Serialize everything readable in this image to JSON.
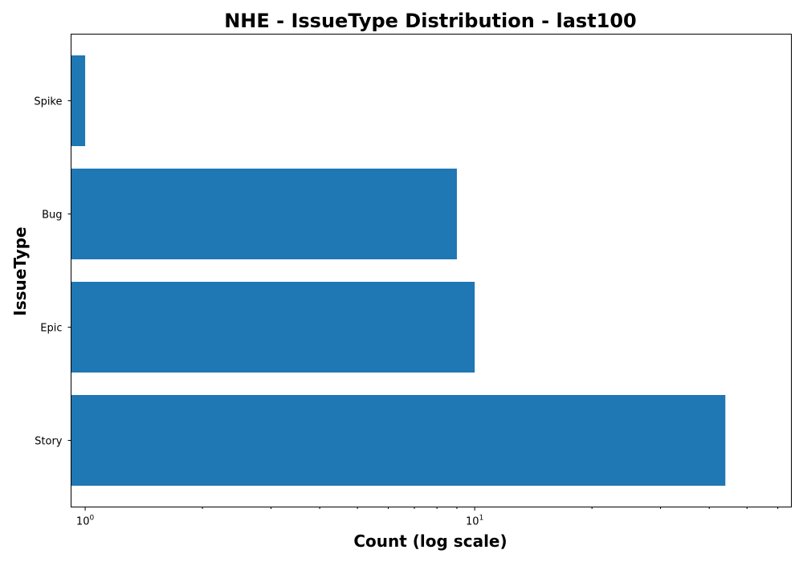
{
  "chart_data": {
    "type": "bar",
    "orientation": "horizontal",
    "title": "NHE - IssueType Distribution - last100",
    "xlabel": "Count (log scale)",
    "ylabel": "IssueType",
    "x_scale": "log",
    "xlim": [
      0.92,
      65
    ],
    "categories": [
      "Story",
      "Epic",
      "Bug",
      "Spike"
    ],
    "values": [
      44,
      10,
      9,
      1
    ],
    "x_ticks": [
      {
        "value": 1,
        "base": "10",
        "exp": "0"
      },
      {
        "value": 10,
        "base": "10",
        "exp": "1"
      }
    ],
    "bar_color": "#1f77b4",
    "grid": false,
    "legend": "none"
  }
}
